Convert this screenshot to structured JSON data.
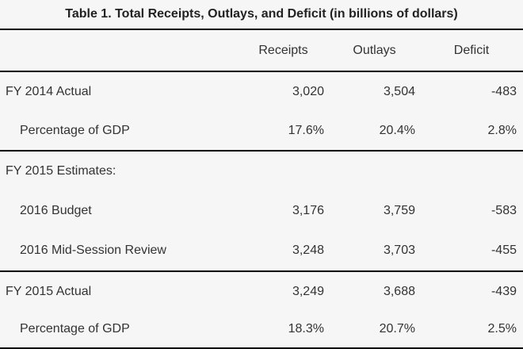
{
  "title": "Table 1. Total Receipts, Outlays, and Deficit (in billions of dollars)",
  "columns": {
    "receipts": "Receipts",
    "outlays": "Outlays",
    "deficit": "Deficit"
  },
  "rows": [
    {
      "label": "FY 2014 Actual",
      "receipts": "3,020",
      "outlays": "3,504",
      "deficit": "-483"
    },
    {
      "label": "Percentage of GDP",
      "receipts": "17.6%",
      "outlays": "20.4%",
      "deficit": "2.8%"
    },
    {
      "label": "FY 2015 Estimates:",
      "receipts": "",
      "outlays": "",
      "deficit": ""
    },
    {
      "label": "2016 Budget",
      "receipts": "3,176",
      "outlays": "3,759",
      "deficit": "-583"
    },
    {
      "label": "2016 Mid-Session Review",
      "receipts": "3,248",
      "outlays": "3,703",
      "deficit": "-455"
    },
    {
      "label": "FY 2015 Actual",
      "receipts": "3,249",
      "outlays": "3,688",
      "deficit": "-439"
    },
    {
      "label": "Percentage of GDP",
      "receipts": "18.3%",
      "outlays": "20.7%",
      "deficit": "2.5%"
    }
  ],
  "colors": {
    "background": "#f6f6f6",
    "rule": "#000000",
    "text": "#333333",
    "title_text": "#222222"
  },
  "chart_data": {
    "type": "table",
    "title": "Table 1. Total Receipts, Outlays, and Deficit (in billions of dollars)",
    "columns": [
      "",
      "Receipts",
      "Outlays",
      "Deficit"
    ],
    "rows": [
      [
        "FY 2014 Actual",
        "3,020",
        "3,504",
        "-483"
      ],
      [
        "Percentage of GDP",
        "17.6%",
        "20.4%",
        "2.8%"
      ],
      [
        "FY 2015 Estimates:",
        "",
        "",
        ""
      ],
      [
        "2016 Budget",
        "3,176",
        "3,759",
        "-583"
      ],
      [
        "2016 Mid-Session Review",
        "3,248",
        "3,703",
        "-455"
      ],
      [
        "FY 2015 Actual",
        "3,249",
        "3,688",
        "-439"
      ],
      [
        "Percentage of GDP",
        "18.3%",
        "20.7%",
        "2.5%"
      ]
    ]
  }
}
